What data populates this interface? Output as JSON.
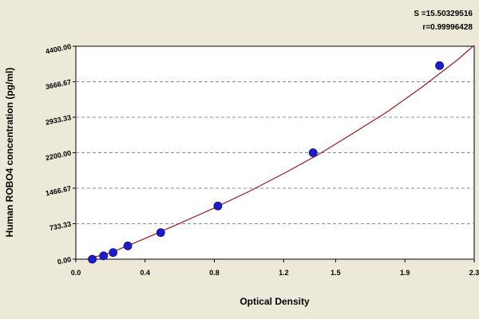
{
  "stats": {
    "s": "S =15.50329516",
    "r": "r=0.99996428"
  },
  "colors": {
    "background": "#ece9d8",
    "plot": "#ffffff",
    "curve": "#a01818",
    "point": "#1c1ccc",
    "grid": "#8c8c8c"
  },
  "chart_data": {
    "type": "scatter",
    "xlabel": "Optical Density",
    "ylabel": "Human ROBO4  concentration (pg/ml)",
    "xlim": [
      0,
      2.3
    ],
    "ylim": [
      0,
      4400
    ],
    "x_ticks": [
      "0.0",
      "0.4",
      "0.8",
      "1.2",
      "1.5",
      "1.9",
      "2.3"
    ],
    "x_tick_values": [
      0,
      0.4,
      0.8,
      1.2,
      1.5,
      1.9,
      2.3
    ],
    "y_ticks": [
      "0.00",
      "733.33",
      "1466.67",
      "2200.00",
      "2933.33",
      "3666.67",
      "4400.00"
    ],
    "y_tick_values": [
      0,
      733.33,
      1466.67,
      2200,
      2933.33,
      3666.67,
      4400
    ],
    "grid": "horizontal dashed",
    "series": [
      {
        "x": [
          0.095,
          0.16,
          0.215,
          0.3,
          0.49,
          0.82,
          1.37,
          2.1
        ],
        "y": [
          0,
          68.75,
          137.5,
          275,
          550,
          1100,
          2200,
          4000
        ]
      }
    ],
    "fit_curve": {
      "x": [
        0.06,
        0.2,
        0.4,
        0.6,
        0.8,
        1.0,
        1.2,
        1.4,
        1.6,
        1.8,
        2.0,
        2.2,
        2.3
      ],
      "y": [
        -60,
        130,
        430,
        740,
        1060,
        1400,
        1770,
        2160,
        2600,
        3050,
        3560,
        4110,
        4420
      ]
    }
  }
}
